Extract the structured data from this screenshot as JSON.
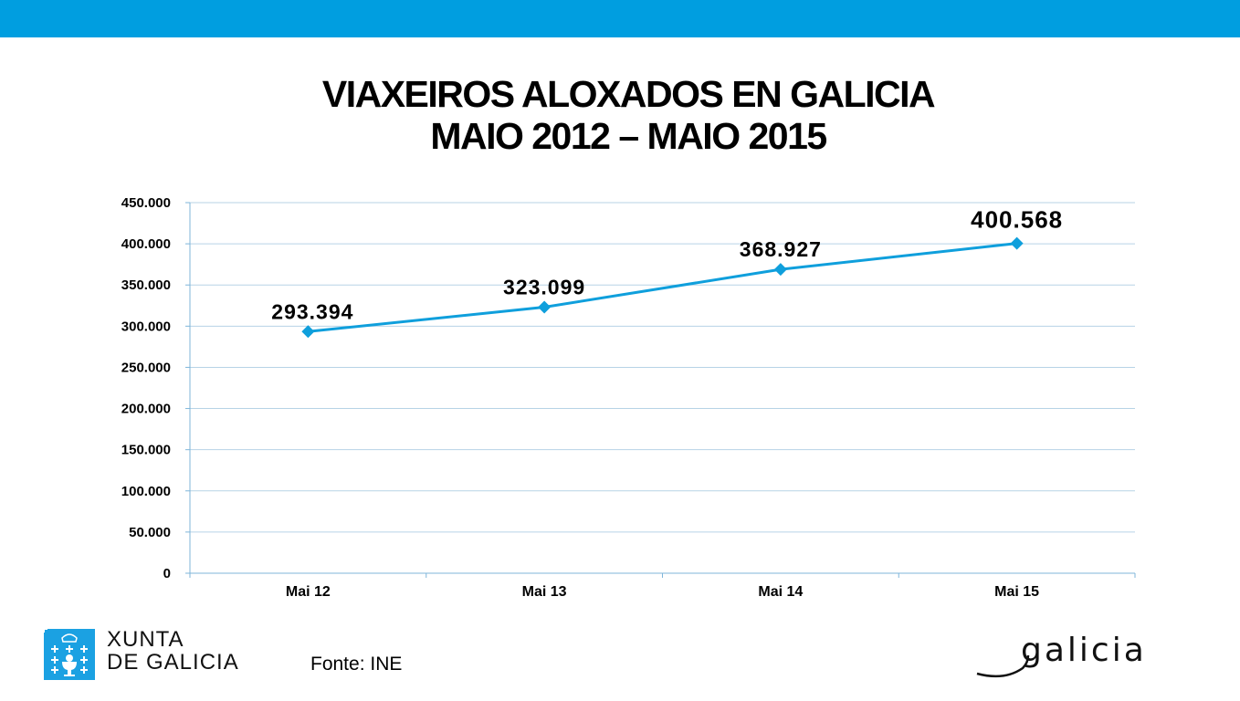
{
  "slide": {
    "title_line1": "VIAXEIROS ALOXADOS EN GALICIA",
    "title_line2": "MAIO 2012 – MAIO 2015",
    "source": "Fonte: INE",
    "logo_left": "XUNTA DE GALICIA",
    "logo_left_line1": "XUNTA",
    "logo_left_line2": "DE GALICIA",
    "logo_right": "galicia",
    "accent_color": "#009ee0"
  },
  "chart_data": {
    "type": "line",
    "title": "VIAXEIROS ALOXADOS EN GALICIA MAIO 2012 – MAIO 2015",
    "categories": [
      "Mai 12",
      "Mai 13",
      "Mai 14",
      "Mai 15"
    ],
    "series": [
      {
        "values": [
          293394,
          323099,
          368927,
          400568
        ],
        "color": "#0f9fdc",
        "marker": "diamond"
      }
    ],
    "data_labels": [
      "293.394",
      "323.099",
      "368.927",
      "400.568"
    ],
    "ylim": [
      0,
      450000
    ],
    "yticks": [
      0,
      50000,
      100000,
      150000,
      200000,
      250000,
      300000,
      350000,
      400000,
      450000
    ],
    "ytick_labels": [
      "0",
      "50.000",
      "100.000",
      "150.000",
      "200.000",
      "250.000",
      "300.000",
      "350.000",
      "400.000",
      "450.000"
    ],
    "grid": true,
    "legend": "none",
    "xlabel": "",
    "ylabel": ""
  }
}
